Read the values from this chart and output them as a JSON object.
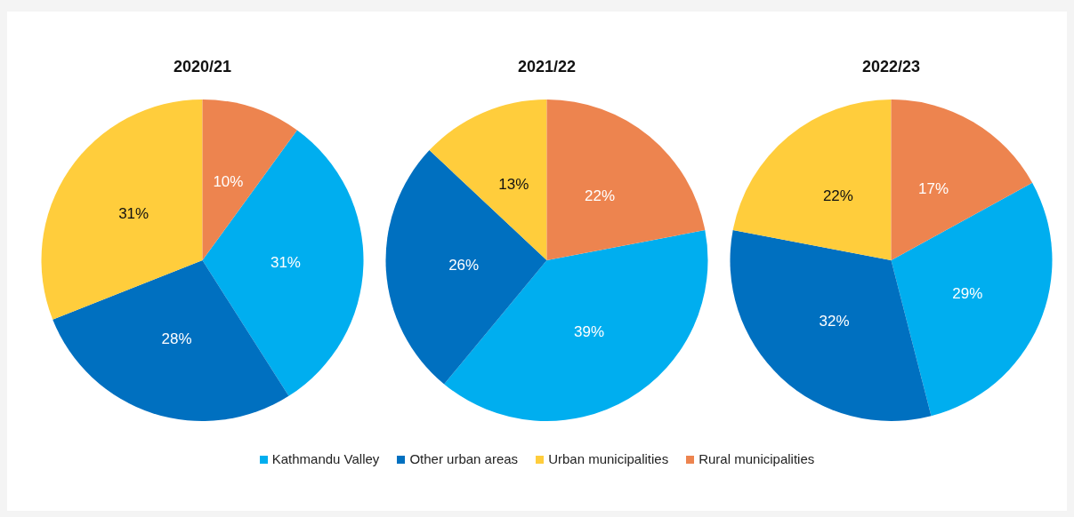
{
  "chart_data": [
    {
      "type": "pie",
      "title": "2020/21",
      "categories": [
        "Kathmandu Valley",
        "Other urban areas",
        "Urban municipalities",
        "Rural municipalities"
      ],
      "values": [
        31,
        28,
        31,
        10
      ],
      "value_labels": [
        "31%",
        "28%",
        "31%",
        "10%"
      ],
      "colors": [
        "#00aeef",
        "#0070c0",
        "#ffcd3c",
        "#ed844f"
      ],
      "legend": "bottom"
    },
    {
      "type": "pie",
      "title": "2021/22",
      "categories": [
        null,
        null,
        null,
        null
      ],
      "values": [
        39,
        26,
        13,
        22
      ],
      "value_labels": [
        "39%",
        "26%",
        "13%",
        "22%"
      ],
      "colors": [
        "#00aeef",
        "#0070c0",
        "#ffcd3c",
        "#ed844f"
      ]
    },
    {
      "type": "pie",
      "title": "2022/23",
      "categories": [
        null,
        null,
        null,
        null
      ],
      "values": [
        29,
        32,
        22,
        17
      ],
      "value_labels": [
        "29%",
        "32%",
        "22%",
        "17%"
      ],
      "colors": [
        "#00aeef",
        "#0070c0",
        "#ffcd3c",
        "#ed844f"
      ]
    }
  ]
}
